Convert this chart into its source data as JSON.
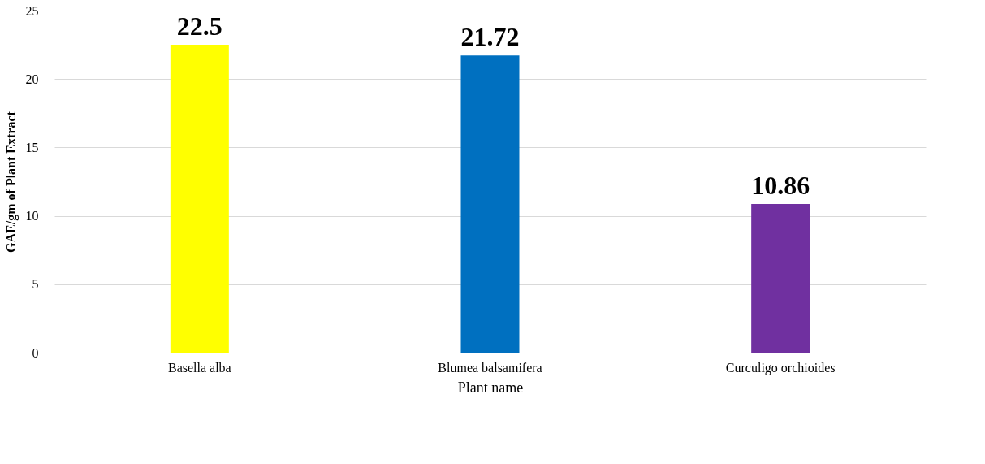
{
  "chart_data": {
    "type": "bar",
    "xlabel": "Plant name",
    "ylabel": "GAE/gm of Plant Extract",
    "categories": [
      "Basella alba",
      "Blumea balsamifera",
      "Curculigo orchioides"
    ],
    "values": [
      22.5,
      21.72,
      10.86
    ],
    "colors": [
      "#ffff00",
      "#0070c0",
      "#7030a0"
    ],
    "ylim": [
      0,
      25
    ],
    "yticks": [
      0,
      5,
      10,
      15,
      20,
      25
    ],
    "grid": "y",
    "data_labels": true
  }
}
